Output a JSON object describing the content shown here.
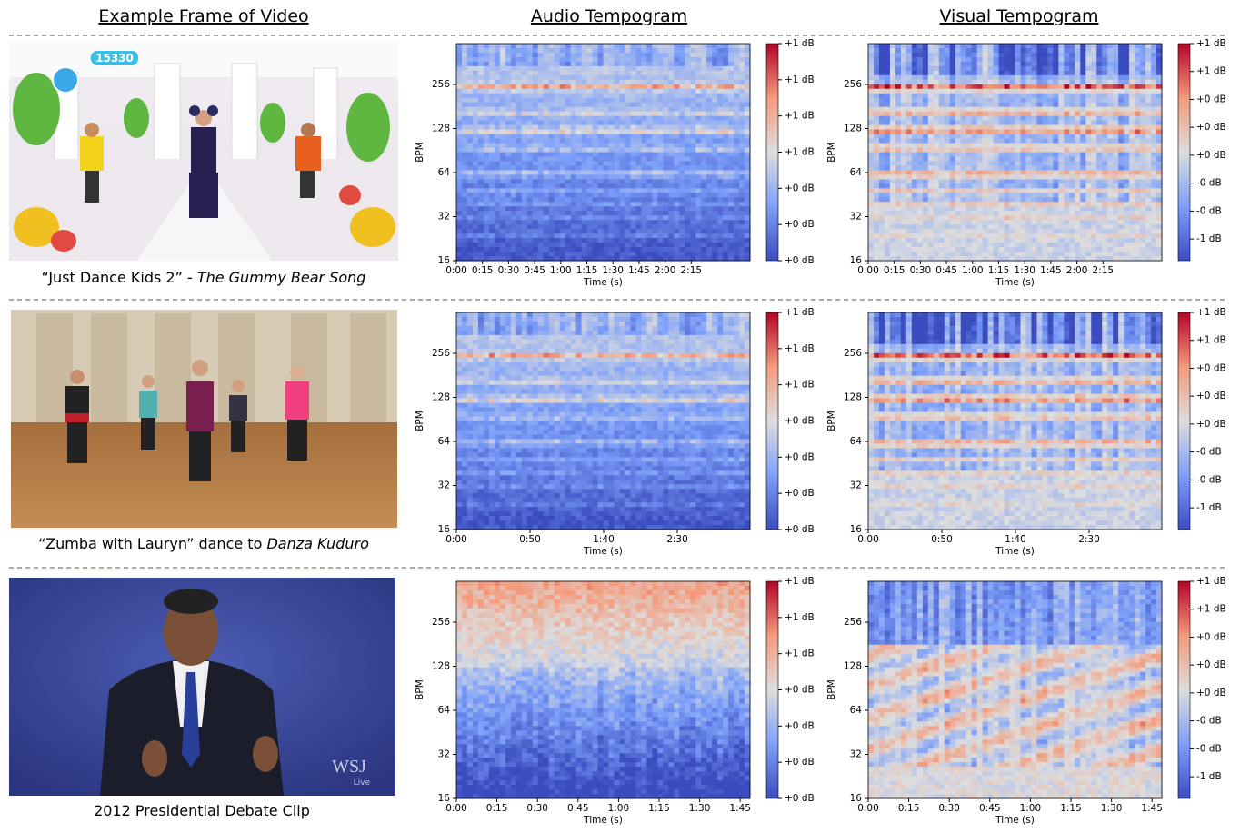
{
  "headers": [
    "Example Frame of Video",
    "Audio Tempogram",
    "Visual Tempogram"
  ],
  "rows": [
    {
      "caption": {
        "text": "“Just Dance Kids 2” - ",
        "italic": "The Gummy Bear Song"
      },
      "scene_text": [
        "15330"
      ],
      "audio": {
        "y_label": "BPM",
        "x_label": "Time (s)",
        "y_ticks": [
          16,
          32,
          64,
          128,
          256
        ],
        "x_ticks": [
          "0:00",
          "0:15",
          "0:30",
          "0:45",
          "1:00",
          "1:15",
          "1:30",
          "1:45",
          "2:00",
          "2:15"
        ],
        "colorbar": [
          "+1 dB",
          "+1 dB",
          "+1 dB",
          "+1 dB",
          "+0 dB",
          "+0 dB",
          "+0 dB"
        ]
      },
      "visual": {
        "y_label": "BPM",
        "x_label": "Time (s)",
        "y_ticks": [
          16,
          32,
          64,
          128,
          256
        ],
        "x_ticks": [
          "0:00",
          "0:15",
          "0:30",
          "0:45",
          "1:00",
          "1:15",
          "1:30",
          "1:45",
          "2:00",
          "2:15"
        ],
        "colorbar": [
          "+1 dB",
          "+1 dB",
          "+0 dB",
          "+0 dB",
          "+0 dB",
          "-0 dB",
          "-0 dB",
          "-1 dB"
        ]
      }
    },
    {
      "caption": {
        "text": "“Zumba with Lauryn” dance to ",
        "italic": "Danza Kuduro"
      },
      "scene_text": [],
      "audio": {
        "y_label": "BPM",
        "x_label": "Time (s)",
        "y_ticks": [
          16,
          32,
          64,
          128,
          256
        ],
        "x_ticks": [
          "0:00",
          "0:50",
          "1:40",
          "2:30"
        ],
        "colorbar": [
          "+1 dB",
          "+1 dB",
          "+1 dB",
          "+0 dB",
          "+0 dB",
          "+0 dB",
          "+0 dB"
        ]
      },
      "visual": {
        "y_label": "BPM",
        "x_label": "Time (s)",
        "y_ticks": [
          16,
          32,
          64,
          128,
          256
        ],
        "x_ticks": [
          "0:00",
          "0:50",
          "1:40",
          "2:30"
        ],
        "colorbar": [
          "+1 dB",
          "+1 dB",
          "+0 dB",
          "+0 dB",
          "+0 dB",
          "-0 dB",
          "-0 dB",
          "-1 dB"
        ]
      }
    },
    {
      "caption": {
        "text": "2012 Presidential Debate Clip"
      },
      "scene_text": [
        "WSJ",
        "Live"
      ],
      "audio": {
        "y_label": "BPM",
        "x_label": "Time (s)",
        "y_ticks": [
          16,
          32,
          64,
          128,
          256
        ],
        "x_ticks": [
          "0:00",
          "0:15",
          "0:30",
          "0:45",
          "1:00",
          "1:15",
          "1:30",
          "1:45"
        ],
        "colorbar": [
          "+1 dB",
          "+1 dB",
          "+1 dB",
          "+0 dB",
          "+0 dB",
          "+0 dB",
          "+0 dB"
        ]
      },
      "visual": {
        "y_label": "BPM",
        "x_label": "Time (s)",
        "y_ticks": [
          16,
          32,
          64,
          128,
          256
        ],
        "x_ticks": [
          "0:00",
          "0:15",
          "0:30",
          "0:45",
          "1:00",
          "1:15",
          "1:30",
          "1:45"
        ],
        "colorbar": [
          "+1 dB",
          "+1 dB",
          "+0 dB",
          "+0 dB",
          "+0 dB",
          "-0 dB",
          "-0 dB",
          "-1 dB"
        ]
      }
    }
  ]
}
